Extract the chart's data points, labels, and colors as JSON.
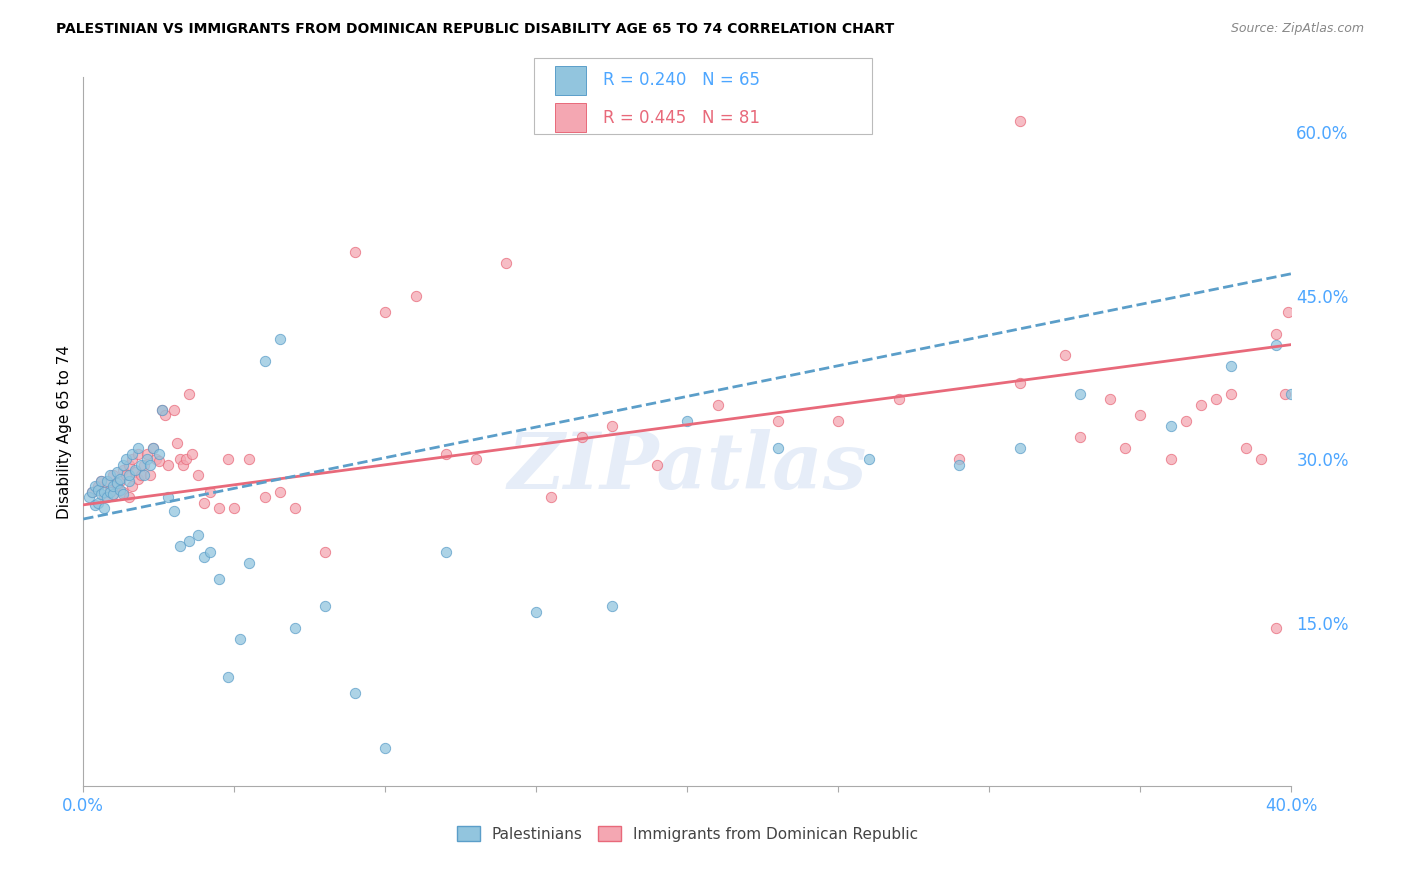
{
  "title": "PALESTINIAN VS IMMIGRANTS FROM DOMINICAN REPUBLIC DISABILITY AGE 65 TO 74 CORRELATION CHART",
  "source": "Source: ZipAtlas.com",
  "ylabel": "Disability Age 65 to 74",
  "right_yticks": [
    "60.0%",
    "45.0%",
    "30.0%",
    "15.0%"
  ],
  "right_ytick_vals": [
    0.6,
    0.45,
    0.3,
    0.15
  ],
  "xlim": [
    0.0,
    0.4
  ],
  "ylim": [
    0.0,
    0.65
  ],
  "watermark": "ZIPatlas",
  "legend_R1": "0.240",
  "legend_N1": "65",
  "legend_R2": "0.445",
  "legend_N2": "81",
  "color_blue": "#92c5de",
  "color_blue_dark": "#5b9ec9",
  "color_pink": "#f4a7b2",
  "color_pink_dark": "#e8697a",
  "color_axis_label": "#4da6ff",
  "blue_line_x": [
    0.0,
    0.4
  ],
  "blue_line_y": [
    0.245,
    0.47
  ],
  "pink_line_x": [
    0.0,
    0.4
  ],
  "pink_line_y": [
    0.258,
    0.405
  ],
  "blue_scatter_x": [
    0.002,
    0.003,
    0.004,
    0.004,
    0.005,
    0.005,
    0.006,
    0.006,
    0.007,
    0.007,
    0.008,
    0.008,
    0.009,
    0.009,
    0.01,
    0.01,
    0.011,
    0.011,
    0.012,
    0.012,
    0.013,
    0.013,
    0.014,
    0.015,
    0.015,
    0.016,
    0.017,
    0.018,
    0.019,
    0.02,
    0.021,
    0.022,
    0.023,
    0.025,
    0.026,
    0.028,
    0.03,
    0.032,
    0.035,
    0.038,
    0.04,
    0.042,
    0.045,
    0.048,
    0.052,
    0.055,
    0.06,
    0.065,
    0.07,
    0.08,
    0.09,
    0.1,
    0.12,
    0.15,
    0.175,
    0.2,
    0.23,
    0.26,
    0.29,
    0.31,
    0.33,
    0.36,
    0.38,
    0.395,
    0.4
  ],
  "blue_scatter_y": [
    0.265,
    0.27,
    0.258,
    0.275,
    0.26,
    0.272,
    0.268,
    0.28,
    0.255,
    0.27,
    0.265,
    0.28,
    0.27,
    0.285,
    0.268,
    0.275,
    0.278,
    0.288,
    0.272,
    0.282,
    0.268,
    0.295,
    0.3,
    0.28,
    0.285,
    0.305,
    0.29,
    0.31,
    0.295,
    0.285,
    0.3,
    0.295,
    0.31,
    0.305,
    0.345,
    0.265,
    0.252,
    0.22,
    0.225,
    0.23,
    0.21,
    0.215,
    0.19,
    0.1,
    0.135,
    0.205,
    0.39,
    0.41,
    0.145,
    0.165,
    0.085,
    0.035,
    0.215,
    0.16,
    0.165,
    0.335,
    0.31,
    0.3,
    0.295,
    0.31,
    0.36,
    0.33,
    0.385,
    0.405,
    0.36
  ],
  "pink_scatter_x": [
    0.003,
    0.005,
    0.006,
    0.007,
    0.008,
    0.009,
    0.01,
    0.01,
    0.011,
    0.012,
    0.013,
    0.013,
    0.014,
    0.015,
    0.015,
    0.016,
    0.016,
    0.017,
    0.018,
    0.018,
    0.019,
    0.02,
    0.021,
    0.022,
    0.023,
    0.024,
    0.025,
    0.026,
    0.027,
    0.028,
    0.03,
    0.031,
    0.032,
    0.033,
    0.034,
    0.035,
    0.036,
    0.038,
    0.04,
    0.042,
    0.045,
    0.048,
    0.05,
    0.055,
    0.06,
    0.065,
    0.07,
    0.08,
    0.09,
    0.1,
    0.11,
    0.12,
    0.13,
    0.14,
    0.155,
    0.165,
    0.175,
    0.19,
    0.21,
    0.23,
    0.25,
    0.27,
    0.29,
    0.31,
    0.33,
    0.345,
    0.36,
    0.37,
    0.38,
    0.39,
    0.395,
    0.398,
    0.399,
    0.395,
    0.385,
    0.375,
    0.365,
    0.35,
    0.34,
    0.325,
    0.31
  ],
  "pink_scatter_y": [
    0.27,
    0.275,
    0.28,
    0.265,
    0.278,
    0.272,
    0.268,
    0.285,
    0.275,
    0.28,
    0.27,
    0.29,
    0.285,
    0.265,
    0.295,
    0.275,
    0.3,
    0.288,
    0.282,
    0.305,
    0.285,
    0.295,
    0.305,
    0.285,
    0.31,
    0.3,
    0.298,
    0.345,
    0.34,
    0.295,
    0.345,
    0.315,
    0.3,
    0.295,
    0.3,
    0.36,
    0.305,
    0.285,
    0.26,
    0.27,
    0.255,
    0.3,
    0.255,
    0.3,
    0.265,
    0.27,
    0.255,
    0.215,
    0.49,
    0.435,
    0.45,
    0.305,
    0.3,
    0.48,
    0.265,
    0.32,
    0.33,
    0.295,
    0.35,
    0.335,
    0.335,
    0.355,
    0.3,
    0.37,
    0.32,
    0.31,
    0.3,
    0.35,
    0.36,
    0.3,
    0.415,
    0.36,
    0.435,
    0.145,
    0.31,
    0.355,
    0.335,
    0.34,
    0.355,
    0.395,
    0.61
  ]
}
